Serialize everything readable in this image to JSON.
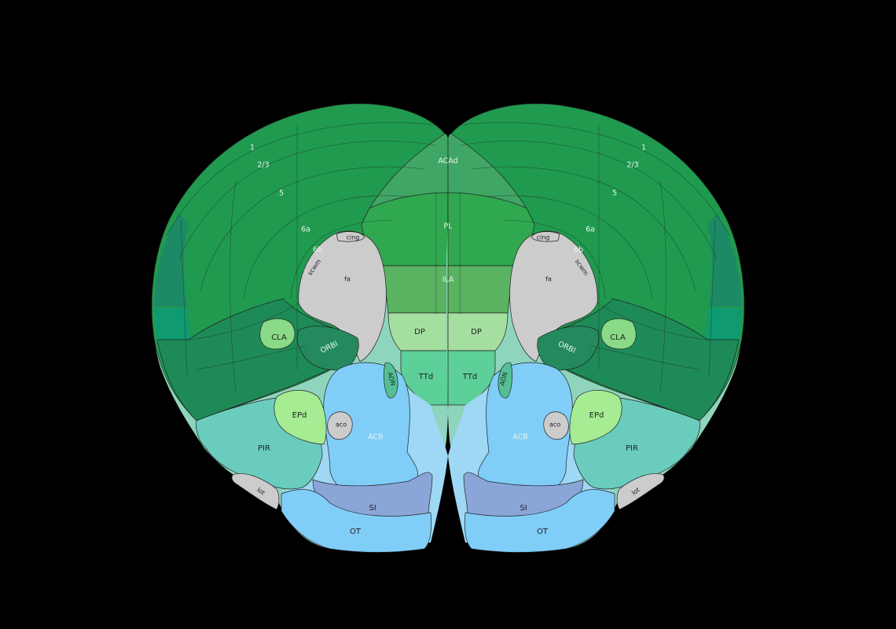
{
  "labels": {
    "acad": "ACAd",
    "pl": "PL",
    "ila": "ILA",
    "dp": "DP",
    "ttd": "TTd",
    "aon": "AON",
    "acb": "ACB",
    "aco": "aco",
    "si": "SI",
    "ot": "OT",
    "pir": "PIR",
    "lot": "lot",
    "epd": "EPd",
    "cla": "CLA",
    "orbl": "ORBl",
    "fa": "fa",
    "cing": "cing",
    "scwm": "scwm",
    "layer1": "1",
    "layer23": "2/3",
    "layer5": "5",
    "layer6a": "6a",
    "layer6b": "6b"
  },
  "colors": {
    "background": "#000000",
    "cortex": "#209a4f",
    "cortex_dark": "#1c8a55",
    "acad": "#40a666",
    "pl": "#2fa84f",
    "ila": "#59b361",
    "dp": "#a5dfa0",
    "ttd": "#5dcf98",
    "aon": "#54bf94",
    "striatum_bg": "#9fd8f5",
    "acb": "#80cdf8",
    "si": "#8aa6d8",
    "ot": "#80cdf8",
    "pir": "#6accbc",
    "epd": "#a5ec93",
    "cla": "#8ada87",
    "orbl": "#248a5e",
    "fiber": "#cccccc",
    "septal_bg": "#8fd4bd"
  }
}
